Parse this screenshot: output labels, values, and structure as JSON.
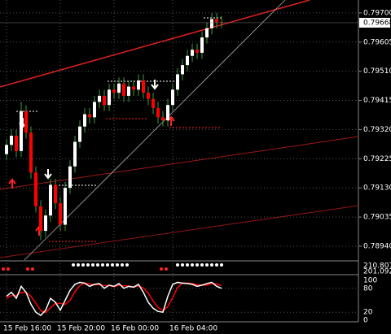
{
  "chart_data": {
    "type": "candlestick",
    "open": [
      0.7924,
      0.7927,
      0.793,
      0.7925,
      0.7938,
      0.7931,
      0.7918,
      0.7907,
      0.7899,
      0.7904,
      0.7914,
      0.7908,
      0.7901,
      0.7913,
      0.792,
      0.7928,
      0.7933,
      0.7937,
      0.7936,
      0.7941,
      0.7943,
      0.794,
      0.7945,
      0.7944,
      0.7947,
      0.7943,
      0.7946,
      0.7945,
      0.7948,
      0.7944,
      0.7942,
      0.7939,
      0.7936,
      0.7935,
      0.794,
      0.7945,
      0.795,
      0.7953,
      0.7956,
      0.7958,
      0.7957,
      0.7962,
      0.7965,
      0.7968,
      0.7967
    ],
    "high": [
      0.7929,
      0.7932,
      0.7932,
      0.7941,
      0.794,
      0.7933,
      0.792,
      0.7909,
      0.7906,
      0.7916,
      0.7916,
      0.791,
      0.7915,
      0.7922,
      0.793,
      0.7935,
      0.7939,
      0.7939,
      0.7943,
      0.7945,
      0.7945,
      0.7947,
      0.7947,
      0.7949,
      0.7949,
      0.7948,
      0.7948,
      0.795,
      0.795,
      0.7946,
      0.7944,
      0.7941,
      0.7938,
      0.7942,
      0.7947,
      0.7952,
      0.7955,
      0.7958,
      0.796,
      0.796,
      0.7964,
      0.7967,
      0.797,
      0.797,
      0.7969
    ],
    "low": [
      0.7922,
      0.7925,
      0.7923,
      0.7923,
      0.7929,
      0.7916,
      0.7905,
      0.7896,
      0.7897,
      0.7902,
      0.7906,
      0.7899,
      0.7899,
      0.7911,
      0.7918,
      0.7926,
      0.7931,
      0.7934,
      0.7934,
      0.7939,
      0.7938,
      0.7938,
      0.7942,
      0.7942,
      0.7941,
      0.7941,
      0.7943,
      0.7943,
      0.7942,
      0.794,
      0.7937,
      0.7934,
      0.7933,
      0.7933,
      0.7938,
      0.7943,
      0.7948,
      0.7951,
      0.7954,
      0.7955,
      0.7955,
      0.796,
      0.7963,
      0.7965,
      0.7965
    ],
    "close": [
      0.7927,
      0.793,
      0.7925,
      0.7938,
      0.7931,
      0.7918,
      0.7907,
      0.7899,
      0.7904,
      0.7914,
      0.7908,
      0.7901,
      0.7913,
      0.792,
      0.7928,
      0.7933,
      0.7937,
      0.7936,
      0.7941,
      0.7943,
      0.794,
      0.7945,
      0.7944,
      0.7947,
      0.7943,
      0.7946,
      0.7945,
      0.7948,
      0.7944,
      0.7942,
      0.7939,
      0.7936,
      0.7935,
      0.794,
      0.7945,
      0.795,
      0.7953,
      0.7956,
      0.7958,
      0.7957,
      0.7962,
      0.7965,
      0.7968,
      0.7967,
      0.79668
    ],
    "up_color": "#ffffff",
    "down_color": "#ff0000",
    "ylim": [
      0.78895,
      0.79742
    ],
    "yticks": [
      {
        "value": 0.797,
        "label": "0.79700"
      },
      0.79605,
      {
        "value": 0.7951,
        "label": "0.79510"
      },
      0.79415,
      {
        "value": 0.7932,
        "label": "0.79320"
      },
      0.79225,
      {
        "value": 0.7913,
        "label": "0.79130"
      },
      0.79035,
      {
        "value": 0.7894,
        "label": "0.78940"
      }
    ],
    "last_price": 0.79668,
    "xticks": [
      {
        "value": 0,
        "label": "15 Feb 16:00"
      },
      {
        "value": 11,
        "label": "15 Feb 20:00"
      },
      {
        "value": 22,
        "label": "16 Feb 00:00"
      },
      {
        "value": 34,
        "label": "16 Feb 04:00"
      }
    ],
    "strip_labels": [
      "210.8074",
      "201.0924"
    ],
    "oscillator": {
      "ylim": [
        0,
        100
      ],
      "yticks": [
        0,
        20,
        80,
        100
      ],
      "series": [
        {
          "color": "#ffffff",
          "values": [
            60,
            70,
            55,
            85,
            70,
            40,
            20,
            12,
            25,
            55,
            45,
            25,
            50,
            75,
            90,
            95,
            93,
            85,
            90,
            92,
            80,
            88,
            85,
            92,
            80,
            85,
            83,
            90,
            70,
            45,
            30,
            22,
            20,
            60,
            90,
            95,
            93,
            92,
            90,
            85,
            88,
            92,
            95,
            85,
            80
          ]
        },
        {
          "color": "#ff0000",
          "values": [
            55,
            62,
            62,
            70,
            70,
            60,
            43,
            24,
            19,
            31,
            42,
            42,
            40,
            50,
            72,
            87,
            93,
            91,
            89,
            89,
            87,
            87,
            84,
            88,
            86,
            86,
            83,
            86,
            81,
            68,
            48,
            32,
            24,
            34,
            57,
            82,
            93,
            93,
            92,
            89,
            88,
            88,
            92,
            91,
            87
          ]
        }
      ]
    }
  }
}
